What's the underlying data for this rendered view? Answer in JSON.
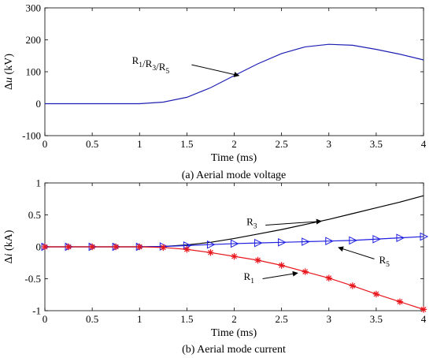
{
  "chart_data": [
    {
      "type": "line",
      "caption": "(a) Aerial mode voltage",
      "xlabel": "Time (ms)",
      "ylabel_symbol": "Δ",
      "ylabel_var": "u",
      "ylabel_unit": " (kV)",
      "xlim": [
        0,
        4
      ],
      "ylim": [
        -100,
        300
      ],
      "xticks": [
        0,
        0.5,
        1,
        1.5,
        2,
        2.5,
        3,
        3.5,
        4
      ],
      "xtick_labels": [
        "0",
        "0.5",
        "1",
        "1.5",
        "2",
        "2.5",
        "3",
        "3.5",
        "4"
      ],
      "yticks": [
        -100,
        0,
        100,
        200,
        300
      ],
      "ytick_labels": [
        "-100",
        "0",
        "100",
        "200",
        "300"
      ],
      "grid": false,
      "series": [
        {
          "name": "R1/R3/R5",
          "color": "#1f1fb4",
          "x": [
            0,
            0.25,
            0.5,
            0.75,
            1,
            1.25,
            1.5,
            1.75,
            2,
            2.25,
            2.5,
            2.75,
            3,
            3.25,
            3.5,
            3.75,
            4
          ],
          "y": [
            0,
            0,
            0,
            0,
            0,
            5,
            20,
            50,
            88,
            125,
            157,
            178,
            186,
            183,
            170,
            155,
            137
          ]
        }
      ],
      "annotations": [
        {
          "parts": [
            {
              "t": "R",
              "sub": "1"
            },
            {
              "t": "/R",
              "sub": "3"
            },
            {
              "t": "/R",
              "sub": "5"
            }
          ],
          "text_at": [
            0.92,
            125
          ],
          "arrow_from": [
            1.55,
            122
          ],
          "arrow_to": [
            2.05,
            88
          ]
        }
      ]
    },
    {
      "type": "line",
      "caption": "(b) Aerial mode current",
      "xlabel": "Time (ms)",
      "ylabel_symbol": "Δ",
      "ylabel_var": "i",
      "ylabel_unit": " (kA)",
      "xlim": [
        0,
        4
      ],
      "ylim": [
        -1,
        1
      ],
      "xticks": [
        0,
        0.5,
        1,
        1.5,
        2,
        2.5,
        3,
        3.5,
        4
      ],
      "xtick_labels": [
        "0",
        "0.5",
        "1",
        "1.5",
        "2",
        "2.5",
        "3",
        "3.5",
        "4"
      ],
      "yticks": [
        -1,
        -0.5,
        0,
        0.5,
        1
      ],
      "ytick_labels": [
        "-1",
        "-0.5",
        "0",
        "0.5",
        "1"
      ],
      "grid": false,
      "series": [
        {
          "name": "R3",
          "color": "#000000",
          "marker": "none",
          "x": [
            0,
            0.25,
            0.5,
            0.75,
            1,
            1.25,
            1.5,
            1.75,
            2,
            2.25,
            2.5,
            2.75,
            3,
            3.25,
            3.5,
            3.75,
            4
          ],
          "y": [
            0,
            0,
            0,
            0,
            0,
            0.005,
            0.03,
            0.07,
            0.13,
            0.2,
            0.27,
            0.35,
            0.43,
            0.52,
            0.61,
            0.7,
            0.8
          ]
        },
        {
          "name": "R5",
          "color": "#1f1fe0",
          "marker": "triangle-right",
          "x": [
            0,
            0.25,
            0.5,
            0.75,
            1,
            1.25,
            1.5,
            1.75,
            2,
            2.25,
            2.5,
            2.75,
            3,
            3.25,
            3.5,
            3.75,
            4
          ],
          "y": [
            0,
            0,
            0,
            0,
            0,
            0.005,
            0.02,
            0.035,
            0.05,
            0.06,
            0.07,
            0.08,
            0.09,
            0.1,
            0.12,
            0.14,
            0.16
          ]
        },
        {
          "name": "R1",
          "color": "#e8161c",
          "marker": "star",
          "x": [
            0,
            0.25,
            0.5,
            0.75,
            1,
            1.25,
            1.5,
            1.75,
            2,
            2.25,
            2.5,
            2.75,
            3,
            3.25,
            3.5,
            3.75,
            4
          ],
          "y": [
            0,
            0,
            0,
            0,
            0,
            -0.01,
            -0.04,
            -0.09,
            -0.15,
            -0.21,
            -0.29,
            -0.39,
            -0.49,
            -0.61,
            -0.74,
            -0.86,
            -0.98
          ]
        }
      ],
      "annotations": [
        {
          "parts": [
            {
              "t": "R",
              "sub": "3"
            }
          ],
          "text_at": [
            2.13,
            0.34
          ],
          "arrow_from": [
            2.33,
            0.34
          ],
          "arrow_to": [
            2.92,
            0.4
          ]
        },
        {
          "parts": [
            {
              "t": "R",
              "sub": "5"
            }
          ],
          "text_at": [
            3.53,
            -0.26
          ],
          "arrow_from": [
            3.48,
            -0.19
          ],
          "arrow_to": [
            3.1,
            -0.01
          ]
        },
        {
          "parts": [
            {
              "t": "R",
              "sub": "1"
            }
          ],
          "text_at": [
            2.1,
            -0.52
          ],
          "arrow_from": [
            2.3,
            -0.5
          ],
          "arrow_to": [
            2.67,
            -0.41
          ]
        }
      ]
    }
  ]
}
